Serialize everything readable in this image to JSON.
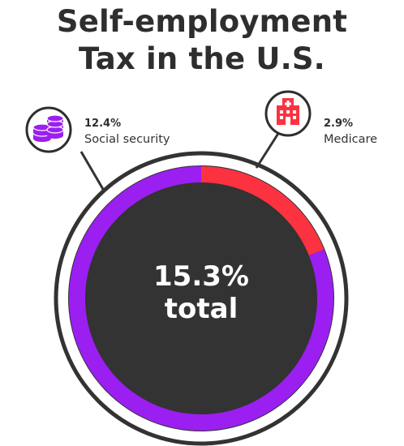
{
  "title_line1": "Self-employment",
  "title_line2": "Tax in the U.S.",
  "center_line1": "15.3%",
  "center_line2": "total",
  "chart_data": {
    "type": "pie",
    "categories": [
      "Social security",
      "Medicare"
    ],
    "values": [
      12.4,
      2.9
    ],
    "value_labels": [
      "12.4%",
      "2.9%"
    ],
    "total": 15.3,
    "colors": [
      "#9b1ff0",
      "#fc3240"
    ],
    "icons": [
      "coins-stack-icon",
      "hospital-icon"
    ]
  },
  "colors": {
    "background_circle": "#333333",
    "title": "#2e2e2e",
    "icon_badge_border": "#2e2e2e"
  }
}
